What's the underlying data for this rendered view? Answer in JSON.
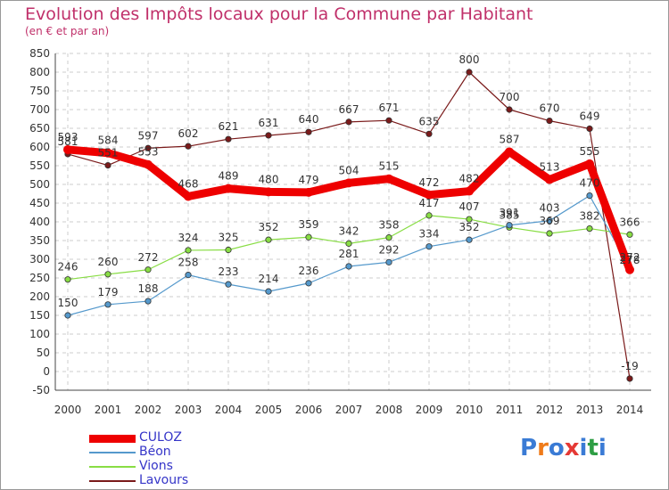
{
  "title": "Evolution des Impôts locaux pour la Commune par Habitant",
  "subtitle": "(en € et par an)",
  "logo": {
    "text": "Proxiti",
    "colors": [
      "#3a7bd5",
      "#ef7b1a",
      "#3a7bd5",
      "#e53935",
      "#3a7bd5",
      "#2e9e44",
      "#3a7bd5"
    ]
  },
  "chart_data": {
    "type": "line",
    "x": [
      2000,
      2001,
      2002,
      2003,
      2004,
      2005,
      2006,
      2007,
      2008,
      2009,
      2010,
      2011,
      2012,
      2013,
      2014
    ],
    "ylim": [
      -50,
      850
    ],
    "yticks": [
      -50,
      0,
      50,
      100,
      150,
      200,
      250,
      300,
      350,
      400,
      450,
      500,
      550,
      600,
      650,
      700,
      750,
      800,
      850
    ],
    "grid": true,
    "legend": "bottom-left",
    "series": [
      {
        "name": "CULOZ",
        "color": "#ee0000",
        "values": [
          593,
          584,
          553,
          468,
          489,
          480,
          479,
          504,
          515,
          472,
          482,
          587,
          513,
          555,
          272
        ]
      },
      {
        "name": "Béon",
        "color": "#5599cc",
        "values": [
          150,
          179,
          188,
          258,
          233,
          214,
          236,
          281,
          292,
          334,
          352,
          391,
          403,
          470,
          278
        ]
      },
      {
        "name": "Vions",
        "color": "#88dd44",
        "values": [
          246,
          260,
          272,
          324,
          325,
          352,
          359,
          342,
          358,
          417,
          407,
          385,
          369,
          382,
          366
        ]
      },
      {
        "name": "Lavours",
        "color": "#7a1a1a",
        "values": [
          581,
          551,
          597,
          602,
          621,
          631,
          640,
          667,
          671,
          635,
          800,
          700,
          670,
          649,
          -19
        ]
      }
    ]
  }
}
